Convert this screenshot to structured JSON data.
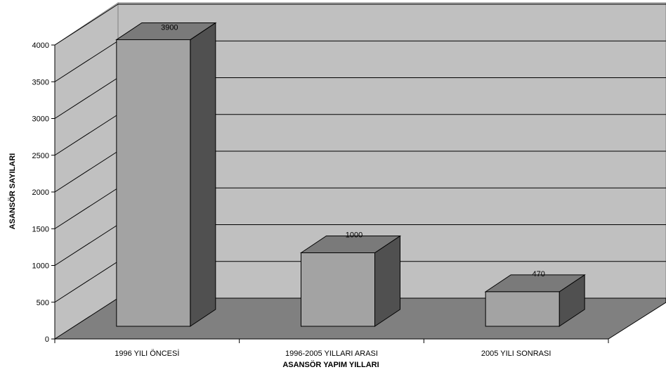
{
  "chart_data": {
    "type": "bar",
    "title": "",
    "categories": [
      "1996 YILI ÖNCESİ",
      "1996-2005 YILLARI ARASI",
      "2005 YILI SONRASI"
    ],
    "values": [
      3900,
      1000,
      470
    ],
    "value_labels": [
      "3900",
      "1000",
      "470"
    ],
    "xlabel": "ASANSÖR YAPIM YILLARI",
    "ylabel": "ASANSÖR SAYILARI",
    "ylim": [
      0,
      4000
    ],
    "yticks": [
      0,
      500,
      1000,
      1500,
      2000,
      2500,
      3000,
      3500,
      4000
    ],
    "ytick_labels": [
      "0",
      "500",
      "1000",
      "1500",
      "2000",
      "2500",
      "3000",
      "3500",
      "4000"
    ],
    "grid": true,
    "legend": "none",
    "style": "3d-bar",
    "colors": {
      "wall": "#c0c0c0",
      "floor": "#808080",
      "bar_front": "#a3a3a3",
      "bar_top": "#7a7a7a",
      "bar_side": "#505050",
      "gridline": "#000000"
    }
  }
}
